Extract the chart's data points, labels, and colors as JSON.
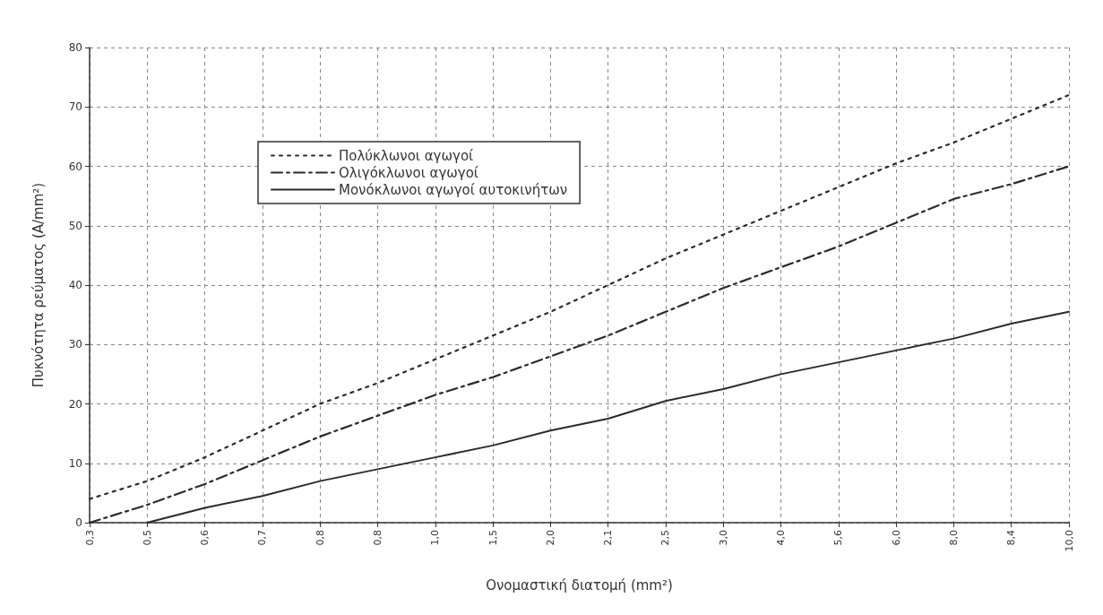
{
  "chart_data": {
    "type": "line",
    "xlabel": "Ονομαστική διατομή (mm²)",
    "ylabel": "Πυκνότητα ρεύματος (A/mm²)",
    "categories": [
      "0,3",
      "0,5",
      "0,6",
      "0,7",
      "0,8",
      "0,8",
      "1,0",
      "1,5",
      "2,0",
      "2,1",
      "2,5",
      "3,0",
      "4,0",
      "5,6",
      "6,0",
      "8,0",
      "8,4",
      "10,0"
    ],
    "series": [
      {
        "name": "Πολύκλωνοι αγωγοί",
        "color": "#2b2b2b",
        "line_style": "dotted",
        "values": [
          4,
          7,
          11,
          15.5,
          20,
          23.5,
          27.5,
          31.5,
          35.5,
          40,
          44.5,
          48.5,
          52.5,
          56.5,
          60.5,
          64,
          68,
          72
        ]
      },
      {
        "name": "Ολιγόκλωνοι αγωγοί",
        "color": "#2b2b2b",
        "line_style": "dashed",
        "values": [
          0,
          3,
          6.5,
          10.5,
          14.5,
          18,
          21.5,
          24.5,
          28,
          31.5,
          35.5,
          39.5,
          43,
          46.5,
          50.5,
          54.5,
          57,
          60
        ]
      },
      {
        "name": "Μονόκλωνοι αγωγοί αυτοκινήτων",
        "color": "#2b2b2b",
        "line_style": "solid",
        "values": [
          null,
          0,
          2.5,
          4.5,
          7,
          9,
          11,
          13,
          15.5,
          17.5,
          20.5,
          22.5,
          25,
          27,
          29,
          31,
          33.5,
          35.5
        ]
      }
    ],
    "ylim": [
      0,
      80
    ],
    "yticks": [
      0,
      10,
      20,
      30,
      40,
      50,
      60,
      70,
      80
    ],
    "grid": true,
    "legend": "top left",
    "marker": "none"
  }
}
